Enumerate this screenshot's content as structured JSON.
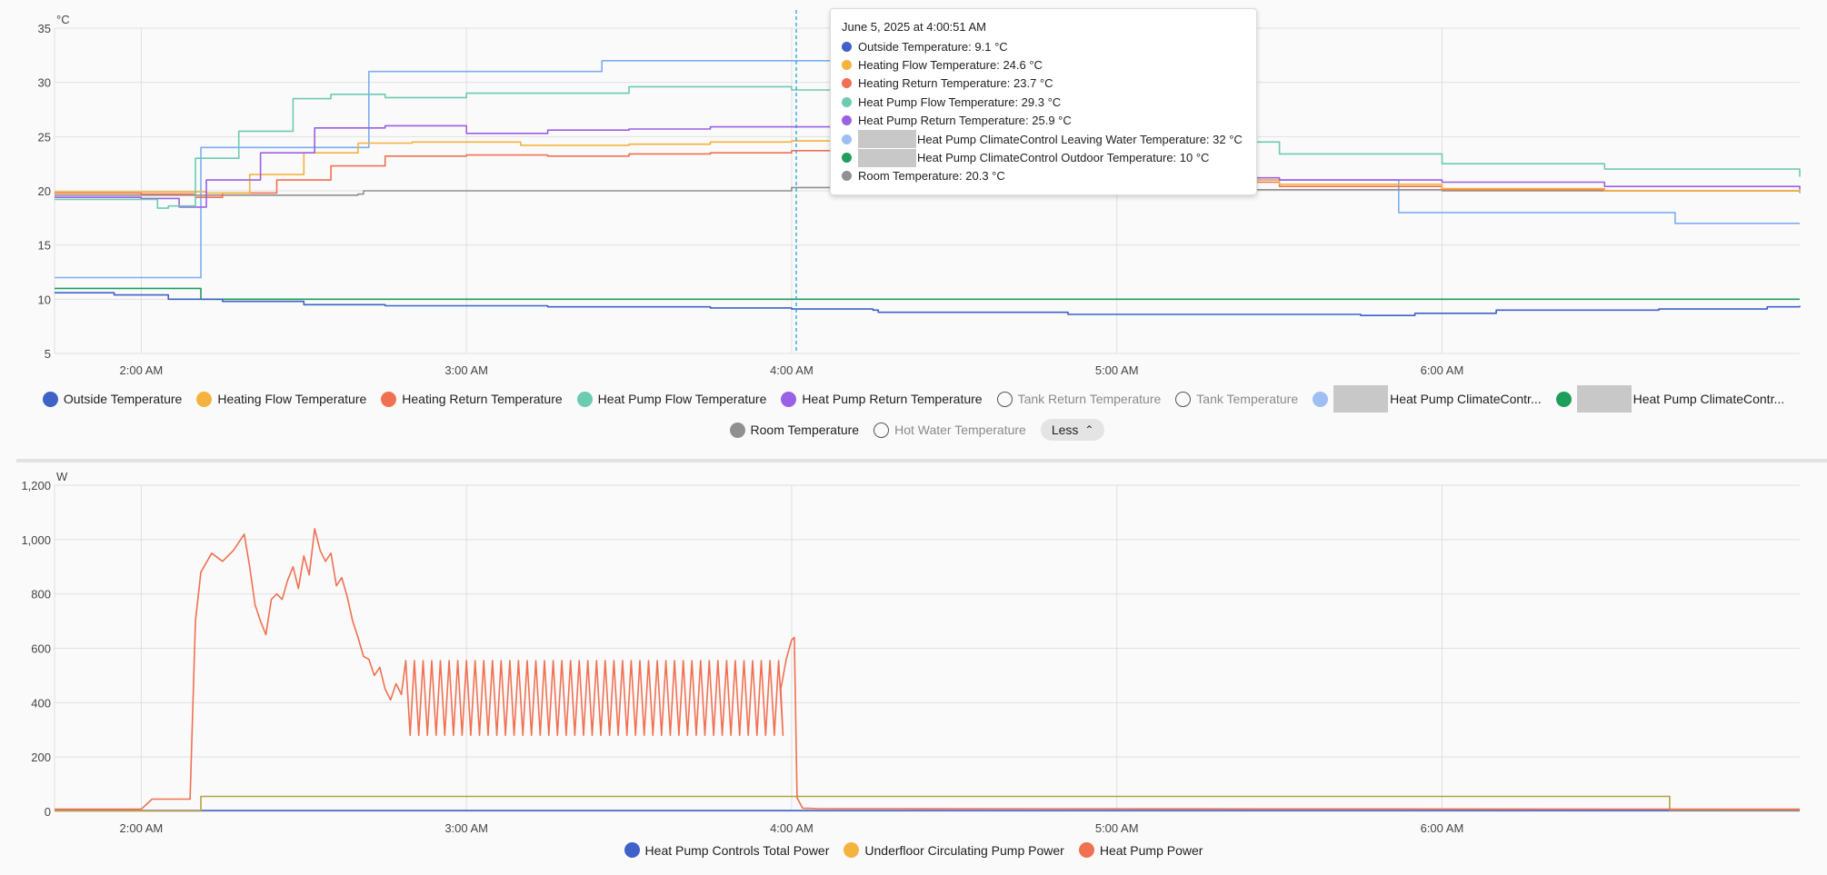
{
  "chart_data": [
    {
      "type": "line",
      "ylabel": "°C",
      "ylim": [
        5,
        35
      ],
      "yticks": [
        "5",
        "10",
        "15",
        "20",
        "25",
        "30",
        "35"
      ],
      "xlim": [
        "01:44",
        "07:06"
      ],
      "xticks": [
        {
          "t": "02:00",
          "label": "2:00 AM"
        },
        {
          "t": "03:00",
          "label": "3:00 AM"
        },
        {
          "t": "04:00",
          "label": "4:00 AM"
        },
        {
          "t": "05:00",
          "label": "5:00 AM"
        },
        {
          "t": "06:00",
          "label": "6:00 AM"
        }
      ],
      "grid": true,
      "legend_position": "bottom",
      "crosshair_time": "04:00:51",
      "series": [
        {
          "name": "Heat Pump ClimateControl Leaving Water Temperature",
          "color": "#7baef2",
          "step": true,
          "points": [
            [
              "01:44",
              12
            ],
            [
              "02:10",
              12
            ],
            [
              "02:11",
              24
            ],
            [
              "02:41",
              24
            ],
            [
              "02:42",
              31
            ],
            [
              "03:24",
              31
            ],
            [
              "03:25",
              32
            ],
            [
              "04:46",
              32
            ],
            [
              "04:47",
              21
            ],
            [
              "05:51",
              21
            ],
            [
              "05:52",
              18
            ],
            [
              "06:42",
              18
            ],
            [
              "06:43",
              17
            ],
            [
              "07:06",
              17
            ]
          ]
        },
        {
          "name": "Heat Pump ClimateControl Outdoor Temperature",
          "color": "#1e9e5a",
          "step": true,
          "points": [
            [
              "01:44",
              11
            ],
            [
              "02:10",
              11
            ],
            [
              "02:11",
              10
            ],
            [
              "07:06",
              10
            ]
          ]
        },
        {
          "name": "Room Temperature",
          "color": "#909090",
          "step": true,
          "points": [
            [
              "01:44",
              19.6
            ],
            [
              "02:40",
              19.7
            ],
            [
              "02:41",
              20.0
            ],
            [
              "04:00",
              20.3
            ],
            [
              "05:00",
              20.1
            ],
            [
              "06:00",
              20.0
            ],
            [
              "07:06",
              20.0
            ]
          ]
        },
        {
          "name": "Outside Temperature",
          "color": "#3e62c8",
          "step": true,
          "points": [
            [
              "01:44",
              10.6
            ],
            [
              "01:55",
              10.4
            ],
            [
              "02:05",
              10.0
            ],
            [
              "02:15",
              9.8
            ],
            [
              "02:30",
              9.5
            ],
            [
              "02:45",
              9.4
            ],
            [
              "03:15",
              9.3
            ],
            [
              "03:45",
              9.2
            ],
            [
              "04:00",
              9.1
            ],
            [
              "04:15",
              9.0
            ],
            [
              "04:16",
              8.8
            ],
            [
              "04:50",
              8.8
            ],
            [
              "04:51",
              8.6
            ],
            [
              "05:25",
              8.6
            ],
            [
              "05:45",
              8.5
            ],
            [
              "05:55",
              8.7
            ],
            [
              "06:10",
              9.0
            ],
            [
              "06:40",
              9.1
            ],
            [
              "07:00",
              9.3
            ],
            [
              "07:06",
              9.4
            ]
          ]
        },
        {
          "name": "Heating Return Temperature",
          "color": "#f07152",
          "step": true,
          "points": [
            [
              "01:44",
              19.8
            ],
            [
              "02:00",
              19.7
            ],
            [
              "02:10",
              19.4
            ],
            [
              "02:15",
              19.8
            ],
            [
              "02:25",
              21.0
            ],
            [
              "02:35",
              22.3
            ],
            [
              "02:45",
              23.2
            ],
            [
              "03:00",
              23.3
            ],
            [
              "03:15",
              23.2
            ],
            [
              "03:30",
              23.4
            ],
            [
              "03:45",
              23.5
            ],
            [
              "04:00",
              23.7
            ],
            [
              "04:20",
              23.5
            ],
            [
              "04:45",
              21.5
            ],
            [
              "05:00",
              20.8
            ],
            [
              "05:30",
              20.4
            ],
            [
              "06:00",
              20.1
            ],
            [
              "06:30",
              20.0
            ],
            [
              "07:06",
              19.8
            ]
          ]
        },
        {
          "name": "Heating Flow Temperature",
          "color": "#f4b33f",
          "step": true,
          "points": [
            [
              "01:44",
              19.9
            ],
            [
              "02:00",
              19.9
            ],
            [
              "02:12",
              19.8
            ],
            [
              "02:20",
              21.5
            ],
            [
              "02:30",
              23.5
            ],
            [
              "02:40",
              24.4
            ],
            [
              "02:50",
              24.5
            ],
            [
              "03:10",
              24.2
            ],
            [
              "03:30",
              24.3
            ],
            [
              "03:45",
              24.5
            ],
            [
              "04:00",
              24.6
            ],
            [
              "04:20",
              24.3
            ],
            [
              "04:45",
              21.8
            ],
            [
              "05:00",
              21.0
            ],
            [
              "05:30",
              20.6
            ],
            [
              "06:00",
              20.2
            ],
            [
              "06:30",
              20.0
            ],
            [
              "07:06",
              19.9
            ]
          ]
        },
        {
          "name": "Heat Pump Return Temperature",
          "color": "#9a60e6",
          "step": true,
          "points": [
            [
              "01:44",
              19.4
            ],
            [
              "02:00",
              19.3
            ],
            [
              "02:07",
              18.5
            ],
            [
              "02:12",
              21.0
            ],
            [
              "02:22",
              23.5
            ],
            [
              "02:32",
              25.8
            ],
            [
              "02:45",
              26.0
            ],
            [
              "03:00",
              25.3
            ],
            [
              "03:15",
              25.6
            ],
            [
              "03:30",
              25.7
            ],
            [
              "03:45",
              25.9
            ],
            [
              "04:00",
              25.9
            ],
            [
              "04:20",
              25.2
            ],
            [
              "04:45",
              21.8
            ],
            [
              "05:00",
              21.2
            ],
            [
              "05:30",
              21.0
            ],
            [
              "06:00",
              20.8
            ],
            [
              "06:30",
              20.4
            ],
            [
              "07:06",
              20.1
            ]
          ]
        },
        {
          "name": "Heat Pump Flow Temperature",
          "color": "#6ccbb0",
          "step": true,
          "points": [
            [
              "01:44",
              19.2
            ],
            [
              "02:00",
              19.2
            ],
            [
              "02:03",
              18.4
            ],
            [
              "02:05",
              18.6
            ],
            [
              "02:10",
              23.0
            ],
            [
              "02:18",
              25.5
            ],
            [
              "02:28",
              28.5
            ],
            [
              "02:35",
              28.9
            ],
            [
              "02:45",
              28.6
            ],
            [
              "03:00",
              29.0
            ],
            [
              "03:30",
              29.6
            ],
            [
              "04:00",
              29.3
            ],
            [
              "04:10",
              28.7
            ],
            [
              "04:30",
              26.5
            ],
            [
              "05:00",
              24.5
            ],
            [
              "05:30",
              23.4
            ],
            [
              "06:00",
              22.5
            ],
            [
              "06:30",
              22.0
            ],
            [
              "07:06",
              21.3
            ]
          ]
        }
      ],
      "legend": [
        {
          "name": "Outside Temperature",
          "color": "#3e62c8",
          "shown": true
        },
        {
          "name": "Heating Flow Temperature",
          "color": "#f4b33f",
          "shown": true
        },
        {
          "name": "Heating Return Temperature",
          "color": "#f07152",
          "shown": true
        },
        {
          "name": "Heat Pump Flow Temperature",
          "color": "#6ccbb0",
          "shown": true
        },
        {
          "name": "Heat Pump Return Temperature",
          "color": "#9a60e6",
          "shown": true
        },
        {
          "name": "Tank Return Temperature",
          "color": "",
          "shown": false
        },
        {
          "name": "Tank Temperature",
          "color": "",
          "shown": false
        },
        {
          "name": "Heat Pump ClimateContr...",
          "color": "#9dbff5",
          "shown": true,
          "redacted": true
        },
        {
          "name": "Heat Pump ClimateContr...",
          "color": "#1e9e5a",
          "shown": true,
          "redacted": true
        }
      ],
      "legend_row2": [
        {
          "name": "Room Temperature",
          "color": "#909090",
          "shown": true
        },
        {
          "name": "Hot Water Temperature",
          "color": "",
          "shown": false
        }
      ],
      "less_label": "Less",
      "tooltip": {
        "title": "June 5, 2025 at 4:00:51 AM",
        "rows": [
          {
            "text": "Outside Temperature: 9.1 °C",
            "color": "#3e62c8"
          },
          {
            "text": "Heating Flow Temperature: 24.6 °C",
            "color": "#f4b33f"
          },
          {
            "text": "Heating Return Temperature: 23.7 °C",
            "color": "#f07152"
          },
          {
            "text": "Heat Pump Flow Temperature: 29.3 °C",
            "color": "#6ccbb0"
          },
          {
            "text": "Heat Pump Return Temperature: 25.9 °C",
            "color": "#9a60e6"
          },
          {
            "text": "Heat Pump ClimateControl Leaving Water Temperature: 32 °C",
            "color": "#9dbff5",
            "redacted": true
          },
          {
            "text": "Heat Pump ClimateControl Outdoor Temperature: 10 °C",
            "color": "#1e9e5a",
            "redacted": true
          },
          {
            "text": "Room Temperature: 20.3 °C",
            "color": "#909090"
          }
        ]
      }
    },
    {
      "type": "line",
      "ylabel": "W",
      "ylim": [
        0,
        1200
      ],
      "yticks": [
        "0",
        "200",
        "400",
        "600",
        "800",
        "1,000",
        "1,200"
      ],
      "xlim": [
        "01:44",
        "07:06"
      ],
      "xticks": [
        {
          "t": "02:00",
          "label": "2:00 AM"
        },
        {
          "t": "03:00",
          "label": "3:00 AM"
        },
        {
          "t": "04:00",
          "label": "4:00 AM"
        },
        {
          "t": "05:00",
          "label": "5:00 AM"
        },
        {
          "t": "06:00",
          "label": "6:00 AM"
        }
      ],
      "grid": true,
      "legend_position": "bottom",
      "series": [
        {
          "name": "Heat Pump Controls Total Power",
          "color": "#3e62c8",
          "step": true,
          "points": [
            [
              "01:44",
              3
            ],
            [
              "07:06",
              3
            ]
          ]
        },
        {
          "name": "Underfloor Circulating Pump Power",
          "color": "#b8a040",
          "step": true,
          "points": [
            [
              "01:44",
              2
            ],
            [
              "02:10",
              2
            ],
            [
              "02:11",
              55
            ],
            [
              "06:41",
              55
            ],
            [
              "06:42",
              5
            ],
            [
              "07:06",
              5
            ]
          ]
        },
        {
          "name": "Heat Pump Power",
          "color": "#f07152",
          "step": false,
          "points": [
            [
              "01:44",
              8
            ],
            [
              "02:00",
              8
            ],
            [
              "02:02",
              45
            ],
            [
              "02:09",
              45
            ],
            [
              "02:10",
              700
            ],
            [
              "02:11",
              880
            ],
            [
              "02:13",
              950
            ],
            [
              "02:15",
              920
            ],
            [
              "02:17",
              960
            ],
            [
              "02:19",
              1020
            ],
            [
              "02:20",
              900
            ],
            [
              "02:21",
              760
            ],
            [
              "02:22",
              700
            ],
            [
              "02:23",
              650
            ],
            [
              "02:24",
              780
            ],
            [
              "02:25",
              800
            ],
            [
              "02:26",
              780
            ],
            [
              "02:27",
              850
            ],
            [
              "02:28",
              900
            ],
            [
              "02:29",
              820
            ],
            [
              "02:30",
              940
            ],
            [
              "02:31",
              870
            ],
            [
              "02:32",
              1040
            ],
            [
              "02:33",
              960
            ],
            [
              "02:34",
              920
            ],
            [
              "02:35",
              950
            ],
            [
              "02:36",
              830
            ],
            [
              "02:37",
              860
            ],
            [
              "02:38",
              790
            ],
            [
              "02:39",
              700
            ],
            [
              "02:40",
              640
            ],
            [
              "02:41",
              570
            ],
            [
              "02:42",
              560
            ],
            [
              "02:43",
              500
            ],
            [
              "02:44",
              530
            ],
            [
              "02:45",
              450
            ],
            [
              "02:46",
              410
            ],
            [
              "02:47",
              470
            ],
            [
              "02:48",
              430
            ]
          ],
          "oscillation": {
            "start": "02:48",
            "end": "03:58",
            "period_min": 1.6,
            "low": 280,
            "high": 555
          },
          "tail": [
            [
              "03:58",
              450
            ],
            [
              "03:59",
              560
            ],
            [
              "04:00",
              630
            ],
            [
              "04:00:30",
              640
            ],
            [
              "04:01",
              50
            ],
            [
              "04:02",
              12
            ],
            [
              "04:05",
              10
            ],
            [
              "07:06",
              8
            ]
          ]
        }
      ],
      "legend": [
        {
          "name": "Heat Pump Controls Total Power",
          "color": "#3e62c8",
          "shown": true
        },
        {
          "name": "Underfloor Circulating Pump Power",
          "color": "#f4b33f",
          "shown": true
        },
        {
          "name": "Heat Pump Power",
          "color": "#f07152",
          "shown": true
        }
      ]
    }
  ]
}
